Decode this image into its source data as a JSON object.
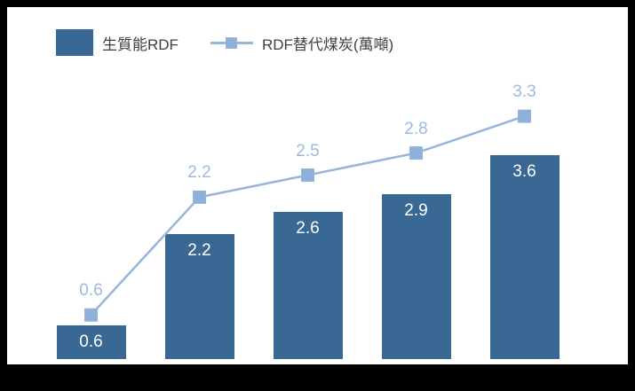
{
  "colors": {
    "frame_bg": "#000000",
    "panel_bg": "#FFFFFF",
    "bar": "#3A6895",
    "line": "#97B4D9",
    "marker": "#8EB0DA",
    "bar_label": "#FFFFFF",
    "line_label": "#9DB9DD",
    "legend_text": "#404040"
  },
  "legend": {
    "bar_series_label": "生質能RDF",
    "line_series_label": "RDF替代煤炭(萬噸)"
  },
  "chart_data": {
    "type": "bar+line",
    "title": "",
    "categories": [
      "",
      "",
      "",
      "",
      ""
    ],
    "series": [
      {
        "name": "生質能RDF",
        "type": "bar",
        "values": [
          0.6,
          2.2,
          2.6,
          2.9,
          3.6
        ]
      },
      {
        "name": "RDF替代煤炭(萬噸)",
        "type": "line",
        "marker": "square",
        "values": [
          0.6,
          2.2,
          2.5,
          2.8,
          3.3
        ]
      }
    ],
    "data_labels": true,
    "label_format": "0.0",
    "axes_visible": false,
    "gridlines": false,
    "legend_position": "top-left",
    "ylim": [
      0,
      4.2
    ]
  }
}
